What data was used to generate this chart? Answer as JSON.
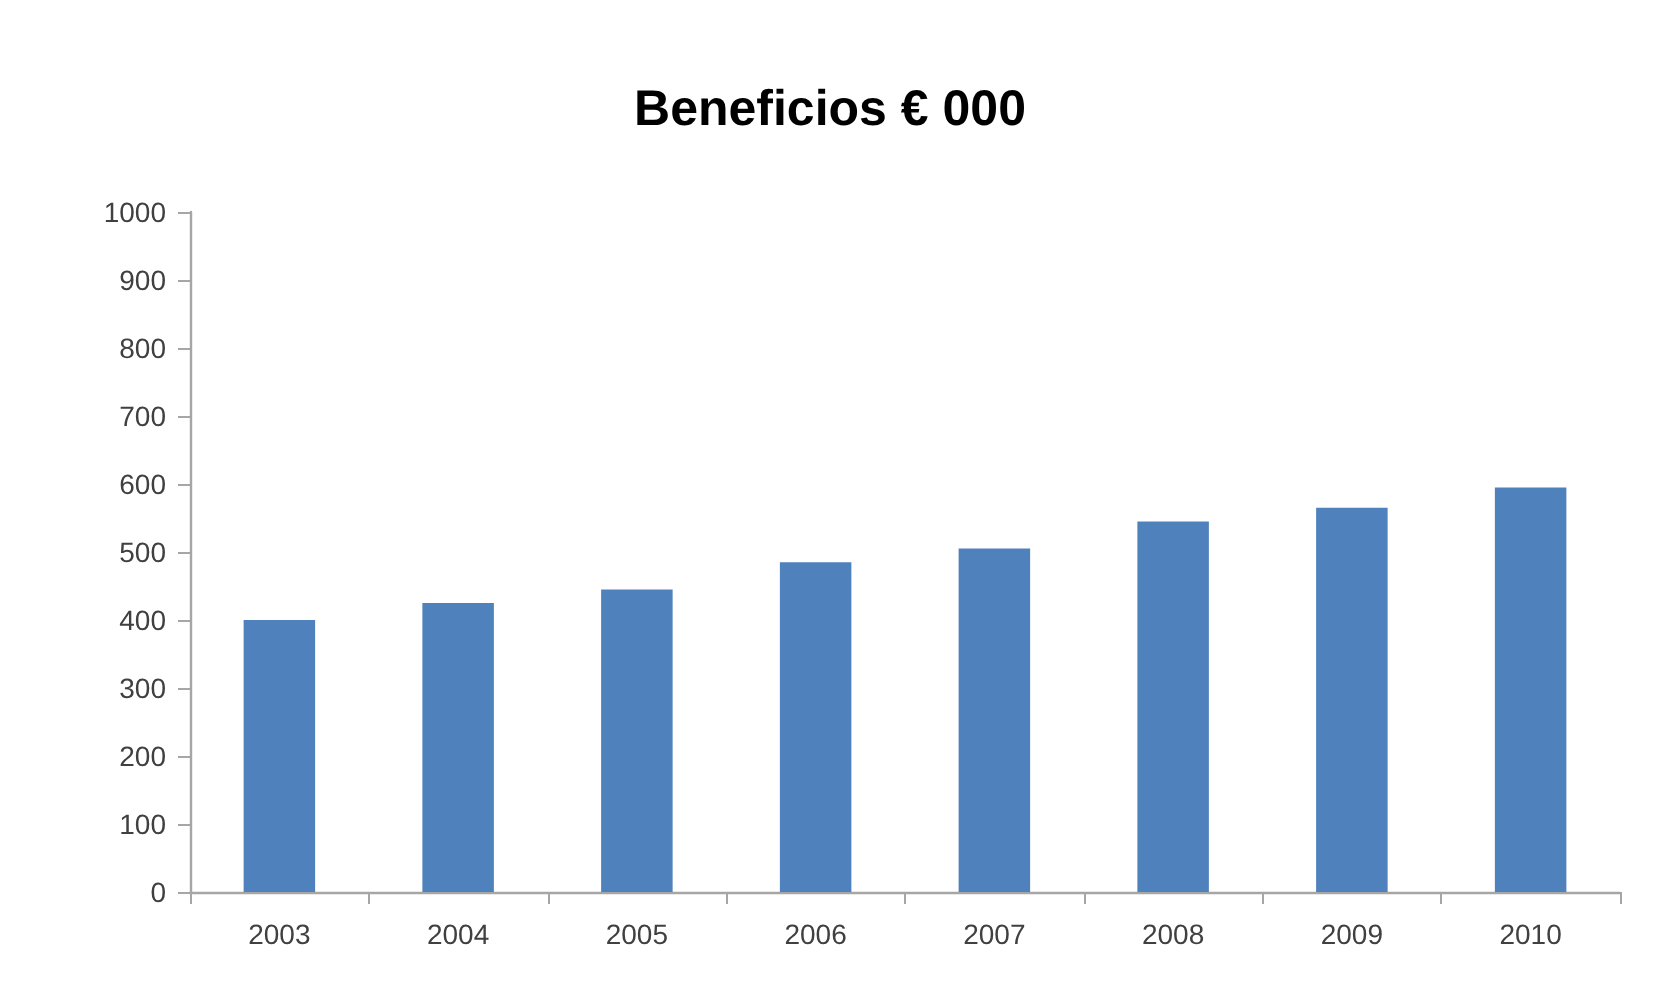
{
  "chart_data": {
    "type": "bar",
    "title": "Beneficios € 000",
    "categories": [
      "2003",
      "2004",
      "2005",
      "2006",
      "2007",
      "2008",
      "2009",
      "2010"
    ],
    "values": [
      400,
      425,
      445,
      485,
      505,
      545,
      565,
      595
    ],
    "color": "#4f81bd",
    "ylim": [
      0,
      1000
    ],
    "yticks": [
      0,
      100,
      200,
      300,
      400,
      500,
      600,
      700,
      800,
      900,
      1000
    ]
  }
}
